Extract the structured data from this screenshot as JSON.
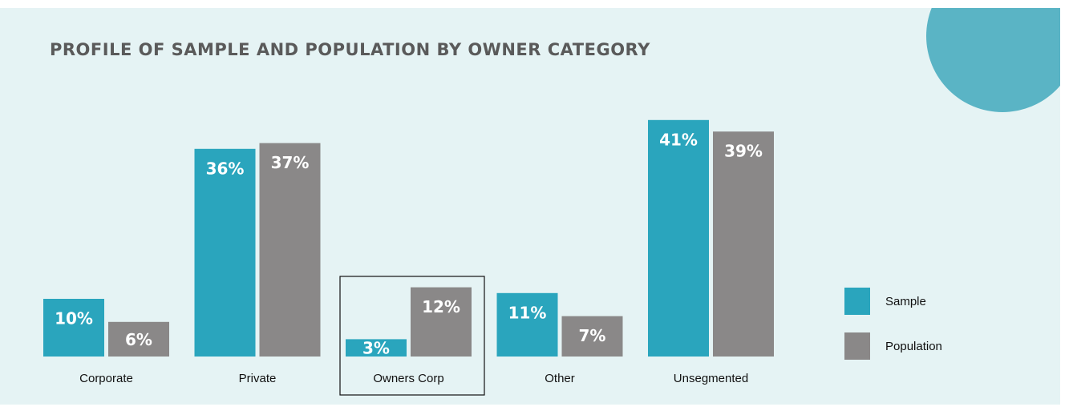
{
  "chart_data": {
    "type": "bar",
    "title": "PROFILE OF SAMPLE AND POPULATION BY OWNER CATEGORY",
    "categories": [
      "Corporate",
      "Private",
      "Owners Corp",
      "Other",
      "Unsegmented"
    ],
    "series": [
      {
        "name": "Sample",
        "color": "#2aa5bd",
        "values": [
          10,
          36,
          3,
          11,
          41
        ],
        "value_labels": [
          "10%",
          "36%",
          "3%",
          "11%",
          "41%"
        ]
      },
      {
        "name": "Population",
        "color": "#8a8888",
        "values": [
          6,
          37,
          12,
          7,
          39
        ],
        "value_labels": [
          "6%",
          "37%",
          "12%",
          "7%",
          "39%"
        ]
      }
    ],
    "legend": "right"
  }
}
